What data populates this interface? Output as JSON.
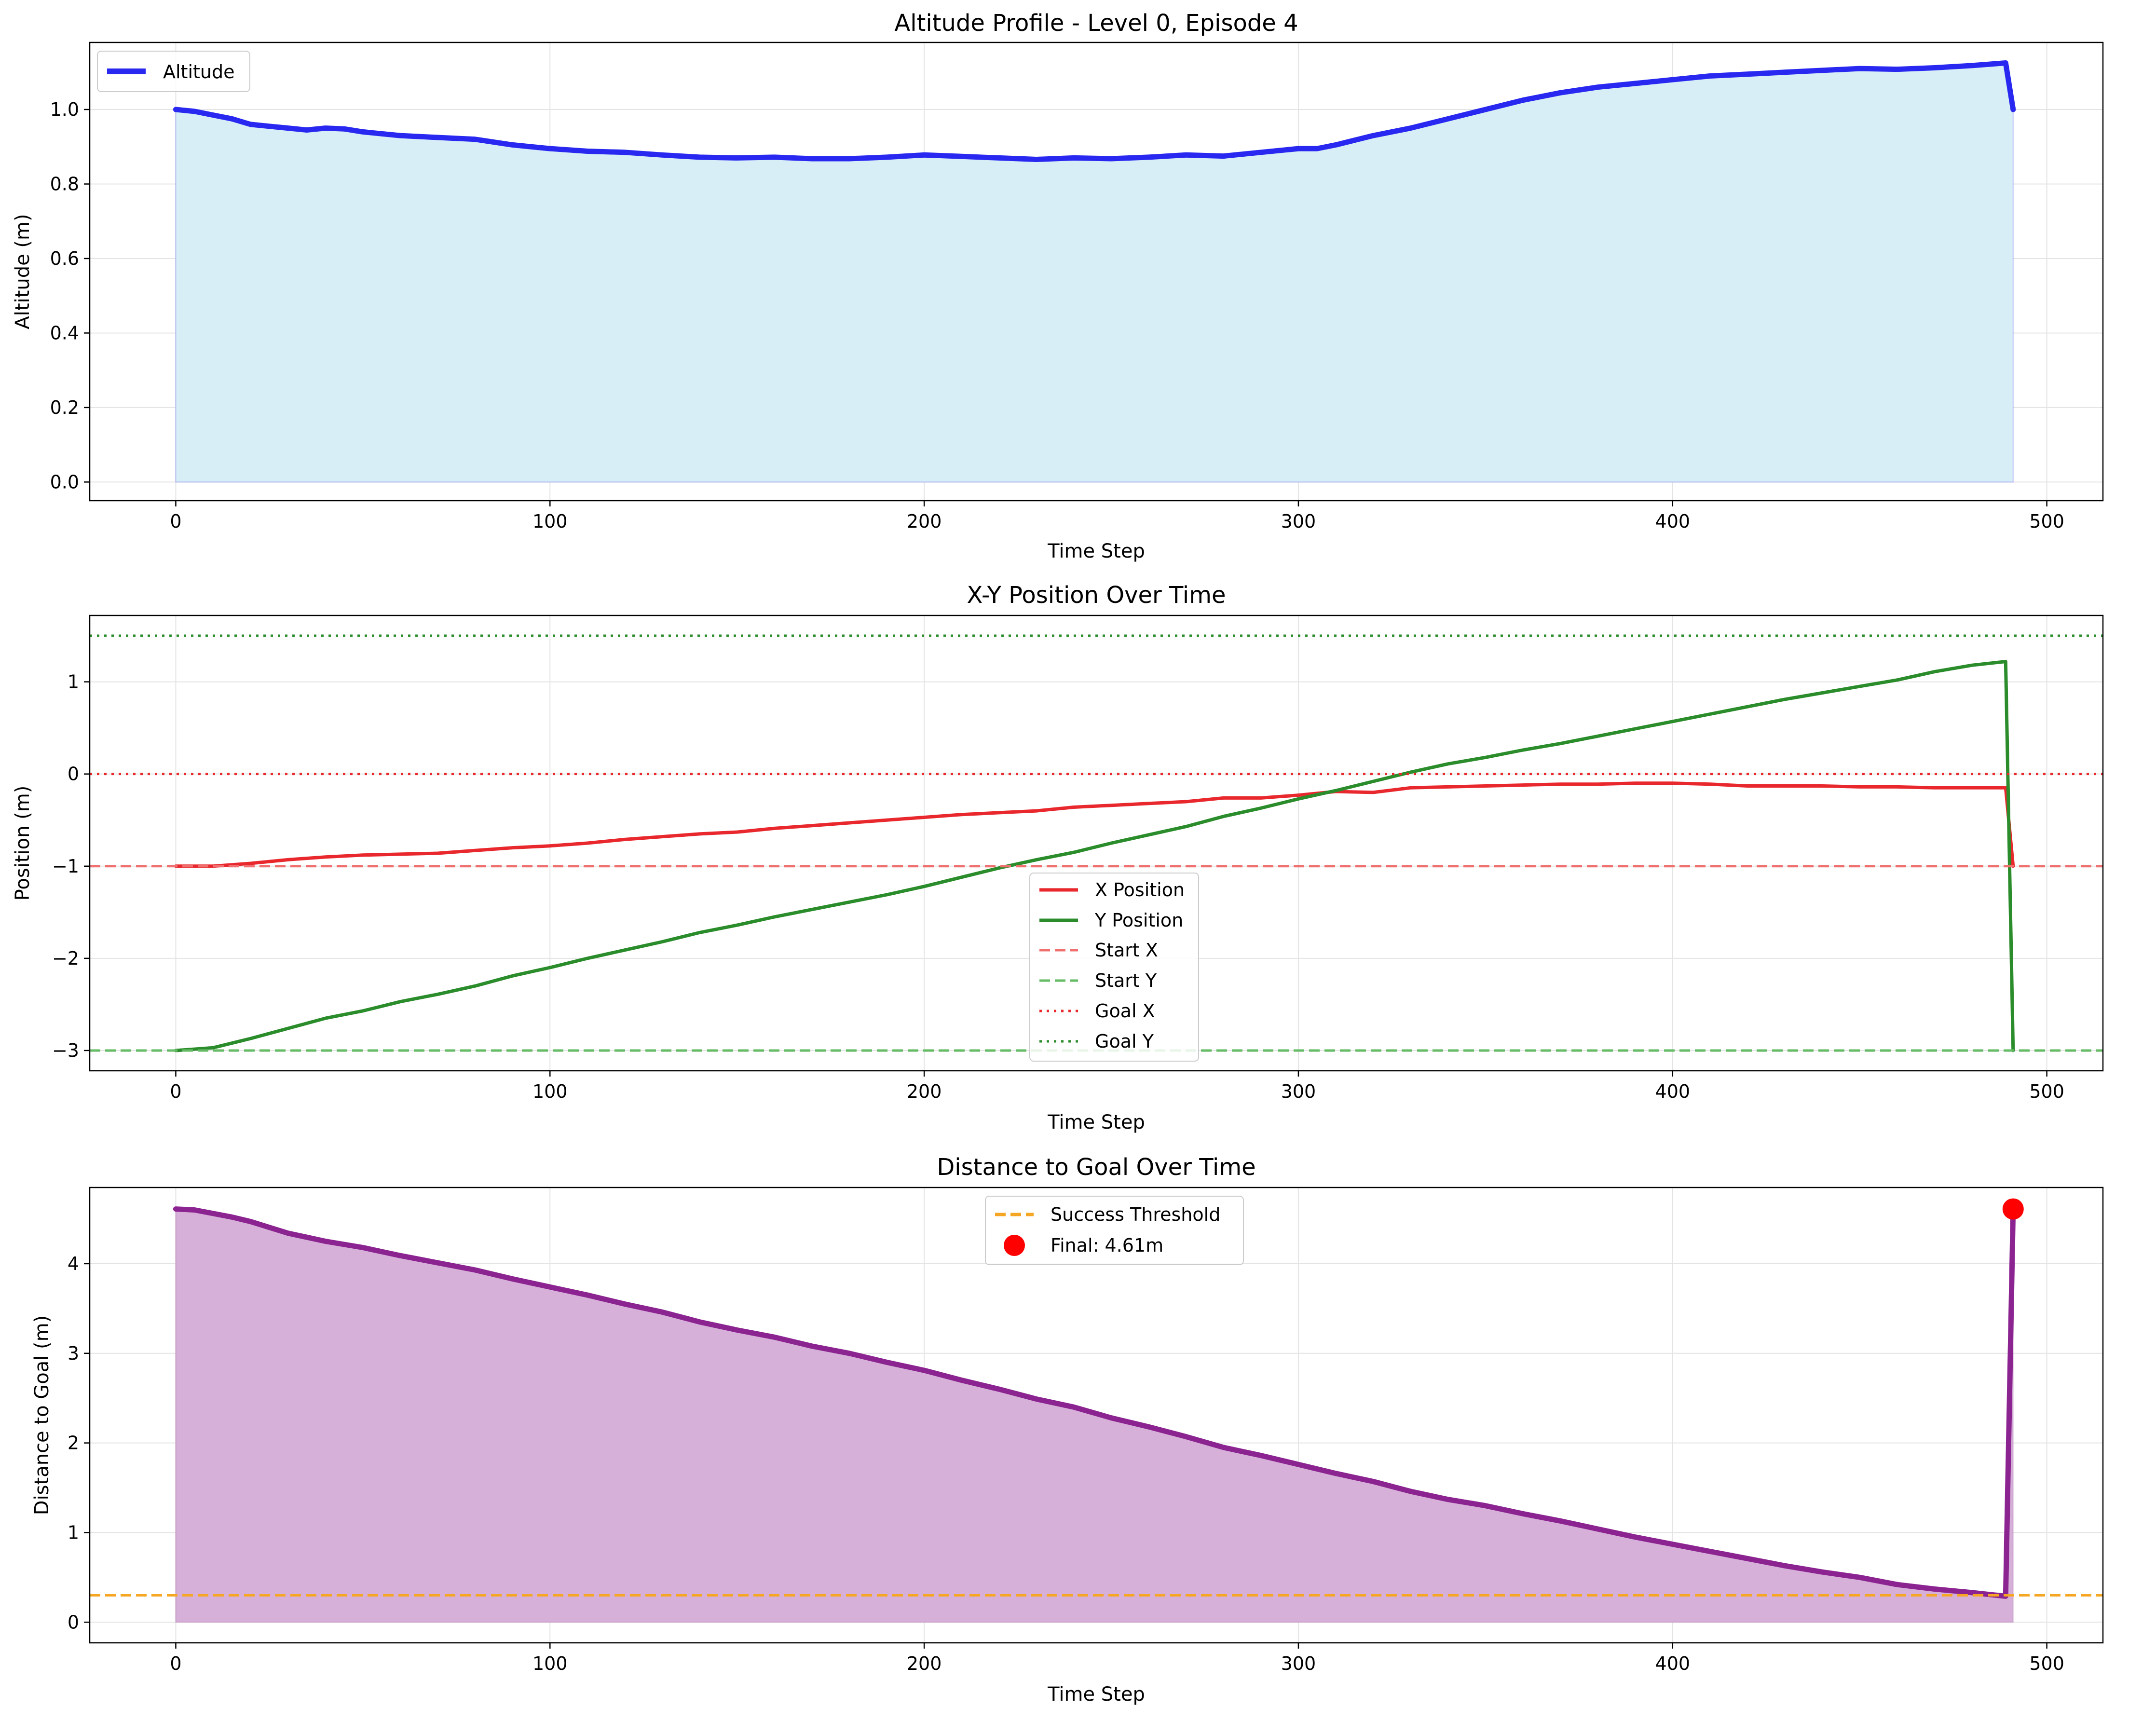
{
  "chart_data": [
    {
      "type": "area",
      "title": "Altitude Profile - Level 0, Episode 4",
      "xlabel": "Time Step",
      "ylabel": "Altitude (m)",
      "xlim": [
        -23,
        515
      ],
      "ylim": [
        -0.05,
        1.18
      ],
      "xticks": [
        "0",
        "100",
        "200",
        "300",
        "400",
        "500"
      ],
      "yticks": [
        "0.0",
        "0.2",
        "0.4",
        "0.6",
        "0.8",
        "1.0"
      ],
      "grid": true,
      "legend_position": "upper-left",
      "series": [
        {
          "name": "Altitude",
          "color": "#2828f0",
          "fill_color": "#d8eef7",
          "x": [
            0,
            5,
            10,
            15,
            20,
            25,
            30,
            35,
            40,
            45,
            50,
            60,
            70,
            80,
            90,
            100,
            110,
            120,
            130,
            140,
            150,
            160,
            170,
            180,
            190,
            200,
            210,
            220,
            230,
            240,
            250,
            260,
            270,
            280,
            290,
            300,
            305,
            310,
            320,
            330,
            340,
            350,
            360,
            370,
            380,
            390,
            400,
            410,
            420,
            430,
            440,
            450,
            460,
            470,
            480,
            489,
            491
          ],
          "values": [
            1.0,
            0.995,
            0.985,
            0.975,
            0.96,
            0.955,
            0.95,
            0.945,
            0.95,
            0.948,
            0.94,
            0.93,
            0.925,
            0.92,
            0.905,
            0.895,
            0.888,
            0.885,
            0.878,
            0.872,
            0.87,
            0.872,
            0.868,
            0.868,
            0.872,
            0.878,
            0.874,
            0.87,
            0.866,
            0.87,
            0.868,
            0.872,
            0.878,
            0.875,
            0.885,
            0.895,
            0.895,
            0.905,
            0.93,
            0.95,
            0.975,
            1.0,
            1.025,
            1.045,
            1.06,
            1.07,
            1.08,
            1.09,
            1.095,
            1.1,
            1.105,
            1.11,
            1.108,
            1.112,
            1.118,
            1.125,
            1.0
          ]
        }
      ]
    },
    {
      "type": "line",
      "title": "X-Y Position Over Time",
      "xlabel": "Time Step",
      "ylabel": "Position (m)",
      "xlim": [
        -23,
        515
      ],
      "ylim": [
        -3.22,
        1.72
      ],
      "xticks": [
        "0",
        "100",
        "200",
        "300",
        "400",
        "500"
      ],
      "yticks": [
        "−3",
        "−2",
        "−1",
        "0",
        "1"
      ],
      "grid": true,
      "legend_position": "lower-center",
      "series": [
        {
          "name": "X Position",
          "color": "#e8282d",
          "x": [
            0,
            10,
            20,
            30,
            40,
            50,
            60,
            70,
            80,
            90,
            100,
            110,
            120,
            130,
            140,
            150,
            160,
            170,
            180,
            190,
            200,
            210,
            220,
            230,
            240,
            250,
            260,
            270,
            280,
            290,
            300,
            310,
            320,
            330,
            340,
            350,
            360,
            370,
            380,
            390,
            400,
            410,
            420,
            430,
            440,
            450,
            460,
            470,
            480,
            489,
            491
          ],
          "values": [
            -1.0,
            -1.0,
            -0.97,
            -0.93,
            -0.9,
            -0.88,
            -0.87,
            -0.86,
            -0.83,
            -0.8,
            -0.78,
            -0.75,
            -0.71,
            -0.68,
            -0.65,
            -0.63,
            -0.59,
            -0.56,
            -0.53,
            -0.5,
            -0.47,
            -0.44,
            -0.42,
            -0.4,
            -0.36,
            -0.34,
            -0.32,
            -0.3,
            -0.26,
            -0.26,
            -0.23,
            -0.19,
            -0.2,
            -0.15,
            -0.14,
            -0.13,
            -0.12,
            -0.11,
            -0.11,
            -0.1,
            -0.1,
            -0.11,
            -0.13,
            -0.13,
            -0.13,
            -0.14,
            -0.14,
            -0.15,
            -0.15,
            -0.15,
            -1.0
          ]
        },
        {
          "name": "Y Position",
          "color": "#2a8c2a",
          "x": [
            0,
            10,
            20,
            30,
            40,
            50,
            60,
            70,
            80,
            90,
            100,
            110,
            120,
            130,
            140,
            150,
            160,
            170,
            180,
            190,
            200,
            210,
            220,
            230,
            240,
            250,
            260,
            270,
            280,
            290,
            300,
            310,
            320,
            330,
            340,
            350,
            360,
            370,
            380,
            390,
            400,
            410,
            420,
            430,
            440,
            450,
            460,
            470,
            480,
            489,
            491
          ],
          "values": [
            -3.0,
            -2.97,
            -2.87,
            -2.76,
            -2.65,
            -2.57,
            -2.47,
            -2.39,
            -2.3,
            -2.19,
            -2.1,
            -2.0,
            -1.91,
            -1.82,
            -1.72,
            -1.64,
            -1.55,
            -1.47,
            -1.39,
            -1.31,
            -1.22,
            -1.12,
            -1.02,
            -0.93,
            -0.85,
            -0.75,
            -0.66,
            -0.57,
            -0.46,
            -0.37,
            -0.27,
            -0.18,
            -0.08,
            0.02,
            0.11,
            0.18,
            0.26,
            0.33,
            0.41,
            0.49,
            0.57,
            0.65,
            0.73,
            0.81,
            0.88,
            0.95,
            1.02,
            1.11,
            1.18,
            1.22,
            -3.0
          ]
        }
      ],
      "reference_lines": [
        {
          "name": "Start X",
          "y": -1,
          "color": "#f07070",
          "style": "dashed"
        },
        {
          "name": "Start Y",
          "y": -3,
          "color": "#66bb66",
          "style": "dashed"
        },
        {
          "name": "Goal X",
          "y": 0,
          "color": "#e8282d",
          "style": "dotted"
        },
        {
          "name": "Goal Y",
          "y": 1.5,
          "color": "#2a8c2a",
          "style": "dotted"
        }
      ]
    },
    {
      "type": "area",
      "title": "Distance to Goal Over Time",
      "xlabel": "Time Step",
      "ylabel": "Distance to Goal (m)",
      "xlim": [
        -23,
        515
      ],
      "ylim": [
        -0.23,
        4.85
      ],
      "xticks": [
        "0",
        "100",
        "200",
        "300",
        "400",
        "500"
      ],
      "yticks": [
        "0",
        "1",
        "2",
        "3",
        "4"
      ],
      "grid": true,
      "legend_position": "upper-center",
      "series": [
        {
          "name": "",
          "color": "#8b2391",
          "fill_color": "#d6b0d8",
          "x": [
            0,
            5,
            10,
            15,
            20,
            30,
            40,
            50,
            60,
            70,
            80,
            90,
            100,
            110,
            120,
            130,
            140,
            150,
            160,
            170,
            180,
            190,
            200,
            210,
            220,
            230,
            240,
            250,
            260,
            270,
            280,
            290,
            300,
            310,
            320,
            330,
            340,
            350,
            360,
            370,
            380,
            390,
            400,
            410,
            420,
            430,
            440,
            450,
            460,
            470,
            480,
            489,
            491
          ],
          "values": [
            4.61,
            4.6,
            4.56,
            4.52,
            4.47,
            4.34,
            4.25,
            4.18,
            4.09,
            4.01,
            3.93,
            3.83,
            3.74,
            3.65,
            3.55,
            3.46,
            3.35,
            3.26,
            3.18,
            3.08,
            3.0,
            2.9,
            2.81,
            2.7,
            2.6,
            2.49,
            2.4,
            2.28,
            2.18,
            2.07,
            1.95,
            1.86,
            1.76,
            1.66,
            1.57,
            1.46,
            1.37,
            1.3,
            1.21,
            1.13,
            1.04,
            0.95,
            0.87,
            0.79,
            0.71,
            0.63,
            0.56,
            0.5,
            0.42,
            0.37,
            0.33,
            0.29,
            4.61
          ]
        }
      ],
      "reference_lines": [
        {
          "name": "Success Threshold",
          "y": 0.3,
          "color": "#f5a623",
          "style": "dashed"
        }
      ],
      "markers": [
        {
          "name": "Final: 4.61m",
          "x": 491,
          "y": 4.61,
          "color": "#ff0000"
        }
      ]
    }
  ]
}
